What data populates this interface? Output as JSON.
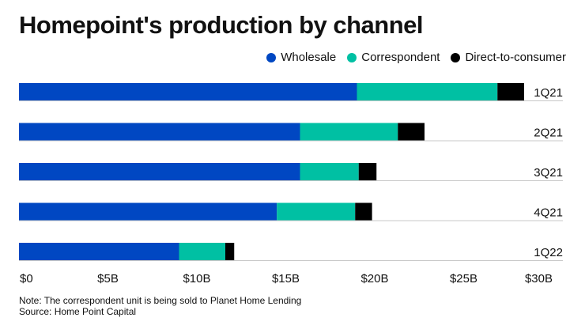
{
  "chart_data": {
    "type": "bar",
    "orientation": "horizontal",
    "stacked": true,
    "title": "Homepoint's production by channel",
    "categories": [
      "1Q21",
      "2Q21",
      "3Q21",
      "4Q21",
      "1Q22"
    ],
    "series": [
      {
        "name": "Wholesale",
        "color": "#0047c2",
        "values": [
          19.0,
          15.8,
          15.8,
          14.5,
          9.0
        ]
      },
      {
        "name": "Correspondent",
        "color": "#00c0a3",
        "values": [
          7.9,
          5.5,
          3.3,
          4.4,
          2.6
        ]
      },
      {
        "name": "Direct-to-consumer",
        "color": "#000000",
        "values": [
          1.5,
          1.5,
          1.0,
          0.95,
          0.5
        ]
      }
    ],
    "xlim": [
      0,
      30
    ],
    "xticks": [
      0,
      5,
      10,
      15,
      20,
      25,
      30
    ],
    "xtick_labels": [
      "$0",
      "$5B",
      "$10B",
      "$15B",
      "$20B",
      "$25B",
      "$30B"
    ],
    "legend_position": "top-right",
    "grid": false
  },
  "notes": {
    "note": "Note: The correspondent unit is being sold to Planet Home Lending",
    "source": "Source: Home Point Capital"
  }
}
